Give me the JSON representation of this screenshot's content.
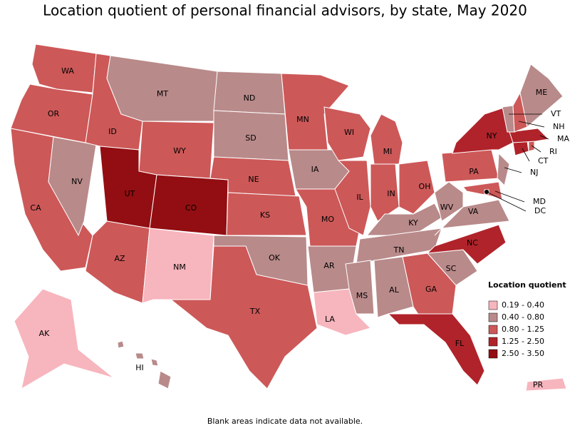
{
  "title": "Location quotient of personal financial advisors, by state, May 2020",
  "legend": {
    "title": "Location quotient",
    "items": [
      {
        "label": "0.19 - 0.40",
        "color": "#f7b5bd"
      },
      {
        "label": "0.40 - 0.80",
        "color": "#b98a8a"
      },
      {
        "label": "0.80 - 1.25",
        "color": "#cd5858"
      },
      {
        "label": "1.25 - 2.50",
        "color": "#b0232a"
      },
      {
        "label": "2.50 - 3.50",
        "color": "#920e12"
      }
    ]
  },
  "states": [
    {
      "label": "WA",
      "color": "#cd5858"
    },
    {
      "label": "OR",
      "color": "#cd5858"
    },
    {
      "label": "CA",
      "color": "#cd5858"
    },
    {
      "label": "NV",
      "color": "#b98a8a"
    },
    {
      "label": "ID",
      "color": "#cd5858"
    },
    {
      "label": "MT",
      "color": "#b98a8a"
    },
    {
      "label": "WY",
      "color": "#cd5858"
    },
    {
      "label": "UT",
      "color": "#920e12"
    },
    {
      "label": "CO",
      "color": "#920e12"
    },
    {
      "label": "AZ",
      "color": "#cd5858"
    },
    {
      "label": "NM",
      "color": "#f7b5bd"
    },
    {
      "label": "ND",
      "color": "#b98a8a"
    },
    {
      "label": "SD",
      "color": "#b98a8a"
    },
    {
      "label": "NE",
      "color": "#cd5858"
    },
    {
      "label": "KS",
      "color": "#cd5858"
    },
    {
      "label": "OK",
      "color": "#b98a8a"
    },
    {
      "label": "TX",
      "color": "#cd5858"
    },
    {
      "label": "MN",
      "color": "#cd5858"
    },
    {
      "label": "IA",
      "color": "#b98a8a"
    },
    {
      "label": "MO",
      "color": "#cd5858"
    },
    {
      "label": "AR",
      "color": "#b98a8a"
    },
    {
      "label": "LA",
      "color": "#f7b5bd"
    },
    {
      "label": "WI",
      "color": "#cd5858"
    },
    {
      "label": "IL",
      "color": "#cd5858"
    },
    {
      "label": "MI",
      "color": "#cd5858"
    },
    {
      "label": "IN",
      "color": "#cd5858"
    },
    {
      "label": "OH",
      "color": "#cd5858"
    },
    {
      "label": "KY",
      "color": "#b98a8a"
    },
    {
      "label": "TN",
      "color": "#b98a8a"
    },
    {
      "label": "MS",
      "color": "#b98a8a"
    },
    {
      "label": "AL",
      "color": "#b98a8a"
    },
    {
      "label": "GA",
      "color": "#cd5858"
    },
    {
      "label": "FL",
      "color": "#b0232a"
    },
    {
      "label": "SC",
      "color": "#b98a8a"
    },
    {
      "label": "NC",
      "color": "#b0232a"
    },
    {
      "label": "VA",
      "color": "#b98a8a"
    },
    {
      "label": "WV",
      "color": "#b98a8a"
    },
    {
      "label": "PA",
      "color": "#cd5858"
    },
    {
      "label": "NY",
      "color": "#b0232a"
    },
    {
      "label": "NJ",
      "color": "#b98a8a"
    },
    {
      "label": "MD",
      "color": "#cd5858"
    },
    {
      "label": "DC",
      "color": "#920e12"
    },
    {
      "label": "CT",
      "color": "#b0232a"
    },
    {
      "label": "RI",
      "color": "#cd5858"
    },
    {
      "label": "MA",
      "color": "#b0232a"
    },
    {
      "label": "VT",
      "color": "#b98a8a"
    },
    {
      "label": "NH",
      "color": "#cd5858"
    },
    {
      "label": "ME",
      "color": "#b98a8a"
    },
    {
      "label": "AK",
      "color": "#f7b5bd"
    },
    {
      "label": "HI",
      "color": "#b98a8a"
    },
    {
      "label": "PR",
      "color": "#f7b5bd"
    }
  ],
  "footnote": "Blank areas indicate data not available."
}
